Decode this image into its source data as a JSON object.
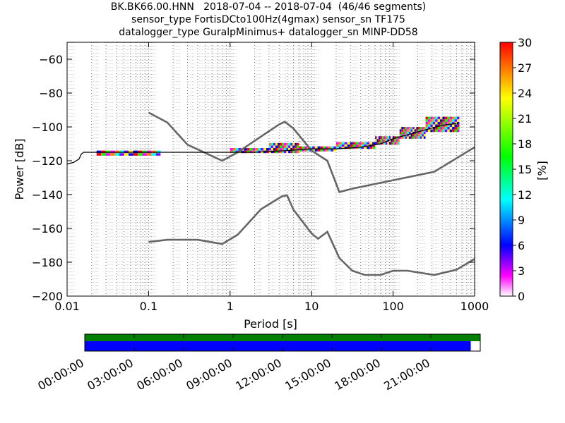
{
  "figure": {
    "title_lines": [
      "BK.BK66.00.HNN   2018-07-04 -- 2018-07-04  (46/46 segments)",
      "sensor_type FortisDCto100Hz(4gmax) sensor_sn TF175",
      "datalogger_type GuralpMinimus+ datalogger_sn MINP-DD58"
    ]
  },
  "chart_data": [
    {
      "type": "heatmap",
      "chart": "probabilistic power spectral density",
      "xlabel": "Period [s]",
      "ylabel": "Power [dB]",
      "xscale": "log",
      "xlim": [
        0.01,
        1000
      ],
      "ylim": [
        -200,
        -50
      ],
      "x_ticks": [
        0.01,
        0.1,
        1,
        10,
        100,
        1000
      ],
      "x_tick_labels": [
        "0.01",
        "0.1",
        "1",
        "10",
        "100",
        "1000"
      ],
      "y_ticks": [
        -200,
        -180,
        -160,
        -140,
        -120,
        -100,
        -80,
        -60
      ],
      "y_tick_labels": [
        "−200",
        "−180",
        "−160",
        "−140",
        "−120",
        "−100",
        "−80",
        "−60"
      ],
      "grid": "dotted vertical lines at each log period step",
      "colorbar": {
        "label": "[%]",
        "range": [
          0,
          30
        ],
        "ticks": [
          0,
          3,
          6,
          9,
          12,
          15,
          18,
          21,
          24,
          27,
          30
        ],
        "colormap": "pqlx (white-magenta-blue-cyan-green-yellow-red)"
      },
      "median_line": [
        [
          0.01,
          -122
        ],
        [
          0.012,
          -121
        ],
        [
          0.014,
          -119
        ],
        [
          0.015,
          -116
        ],
        [
          0.016,
          -115
        ],
        [
          0.02,
          -115
        ],
        [
          0.1,
          -115
        ],
        [
          1,
          -115
        ],
        [
          2,
          -115
        ],
        [
          5,
          -114
        ],
        [
          10,
          -113
        ],
        [
          20,
          -113
        ],
        [
          40,
          -112
        ],
        [
          70,
          -110
        ],
        [
          100,
          -107
        ],
        [
          200,
          -103
        ],
        [
          400,
          -99
        ],
        [
          600,
          -98
        ]
      ],
      "ppsd_bands": [
        {
          "x_start": 0.023,
          "x_end": 0.14,
          "center": -115.5,
          "half_width": 1.5
        },
        {
          "x_start": 1.0,
          "x_end": 3.0,
          "center": -114.0,
          "half_width": 1.5
        },
        {
          "x_start": 3.0,
          "x_end": 7.0,
          "center": -112.5,
          "half_width": 3.0
        },
        {
          "x_start": 7.0,
          "x_end": 20.0,
          "center": -113.0,
          "half_width": 1.5
        },
        {
          "x_start": 20.0,
          "x_end": 60.0,
          "center": -111.0,
          "half_width": 2.0
        },
        {
          "x_start": 60.0,
          "x_end": 120.0,
          "center": -108.0,
          "half_width": 2.5
        },
        {
          "x_start": 120.0,
          "x_end": 250.0,
          "center": -103.5,
          "half_width": 3.5
        },
        {
          "x_start": 250.0,
          "x_end": 650.0,
          "center": -98.5,
          "half_width": 4.5
        }
      ],
      "series": [
        {
          "name": "New High Noise Model",
          "color": "#666666",
          "points": [
            [
              0.1,
              -91.5
            ],
            [
              0.17,
              -97.4
            ],
            [
              0.3,
              -110.5
            ],
            [
              0.8,
              -120
            ],
            [
              1.24,
              -115
            ],
            [
              4.0,
              -98.5
            ],
            [
              4.7,
              -97
            ],
            [
              6.0,
              -101
            ],
            [
              10,
              -114
            ],
            [
              15.6,
              -120
            ],
            [
              21.9,
              -138.5
            ],
            [
              31.6,
              -136.5
            ],
            [
              320,
              -126.5
            ],
            [
              1000,
              -112
            ]
          ]
        },
        {
          "name": "New Low Noise Model",
          "color": "#666666",
          "points": [
            [
              0.1,
              -168
            ],
            [
              0.17,
              -166.7
            ],
            [
              0.4,
              -166.7
            ],
            [
              0.8,
              -169.2
            ],
            [
              1.24,
              -163.7
            ],
            [
              2.4,
              -148.6
            ],
            [
              4.3,
              -141.1
            ],
            [
              5.0,
              -140.4
            ],
            [
              6.0,
              -149
            ],
            [
              10,
              -163
            ],
            [
              12,
              -166.1
            ],
            [
              15.6,
              -162
            ],
            [
              21.9,
              -177.5
            ],
            [
              31.6,
              -185
            ],
            [
              45,
              -187.5
            ],
            [
              70,
              -187.5
            ],
            [
              100,
              -185
            ],
            [
              150,
              -185
            ],
            [
              320,
              -187.5
            ],
            [
              600,
              -184.4
            ],
            [
              1000,
              -178
            ]
          ]
        }
      ]
    },
    {
      "type": "bar",
      "chart": "temporal data coverage",
      "time_tick_labels": [
        "00:00:00",
        "03:00:00",
        "06:00:00",
        "09:00:00",
        "12:00:00",
        "15:00:00",
        "18:00:00",
        "21:00:00"
      ],
      "series": [
        {
          "color": "#008000",
          "start_fraction": 0.0,
          "end_fraction": 1.0
        },
        {
          "color": "#0000ff",
          "start_fraction": 0.0,
          "end_fraction": 0.976
        }
      ]
    }
  ]
}
